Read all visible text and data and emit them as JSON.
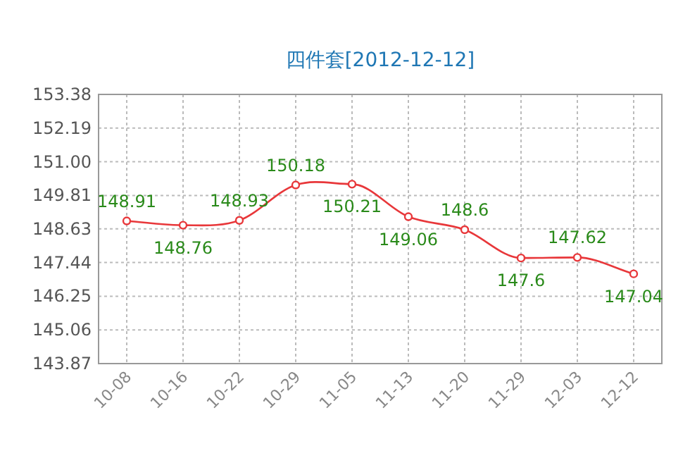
{
  "chart_data": {
    "type": "line",
    "title": "四件套[2012-12-12]",
    "categories": [
      "10-08",
      "10-16",
      "10-22",
      "10-29",
      "11-05",
      "11-13",
      "11-20",
      "11-29",
      "12-03",
      "12-12"
    ],
    "series": [
      {
        "color": "#e8373a",
        "values": [
          148.91,
          148.76,
          148.93,
          150.18,
          150.21,
          149.06,
          148.6,
          147.6,
          147.62,
          147.04
        ]
      }
    ],
    "ylim": [
      143.87,
      153.38
    ],
    "yticks": [
      143.87,
      145.06,
      146.25,
      147.44,
      148.63,
      149.81,
      {
        "value": 151,
        "label": "151.00"
      },
      152.19,
      153.38
    ],
    "grid": true,
    "marker": "circle",
    "data_labels": true
  }
}
